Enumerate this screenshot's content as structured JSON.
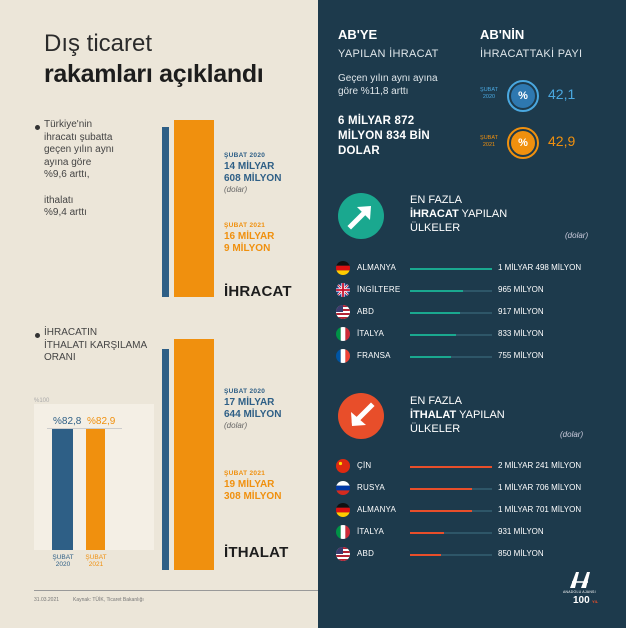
{
  "title": {
    "line1": "Dış ticaret",
    "line2": "rakamları açıklandı"
  },
  "export_intro": {
    "line1": "Türkiye'nin",
    "line2": "ihracatı şubatta",
    "line3": "geçen yılın aynı",
    "line4": "ayına göre",
    "line5": "%9,6 arttı,",
    "line6": "ithalatı",
    "line7": "%9,4 arttı"
  },
  "export_bars": {
    "left_value": 14.608,
    "right_value": 16.009,
    "y2020_label": "ŞUBAT 2020",
    "y2020_value_1": "14 MİLYAR",
    "y2020_value_2": "608 MİLYON",
    "y2020_unit": "(dolar)",
    "y2021_label": "ŞUBAT 2021",
    "y2021_value_1": "16 MİLYAR",
    "y2021_value_2": "9 MİLYON",
    "label": "İHRACAT"
  },
  "import_bars": {
    "left_value": 17.644,
    "right_value": 19.308,
    "y2020_label": "ŞUBAT 2020",
    "y2020_value_1": "17 MİLYAR",
    "y2020_value_2": "644 MİLYON",
    "y2020_unit": "(dolar)",
    "y2021_label": "ŞUBAT 2021",
    "y2021_value_1": "19 MİLYAR",
    "y2021_value_2": "308 MİLYON",
    "label": "İTHALAT"
  },
  "coverage": {
    "title1": "İHRACATIN",
    "title2": "İTHALATI KARŞILAMA",
    "title3": "ORANI",
    "axis_label": "%100",
    "v2020": 82.8,
    "v2020_label": "%82,8",
    "v2021": 82.9,
    "v2021_label": "%82,9",
    "x1a": "ŞUBAT",
    "x1b": "2020",
    "x2a": "ŞUBAT",
    "x2b": "2021"
  },
  "eu_export": {
    "head1": "AB'YE",
    "head2": "YAPILAN İHRACAT",
    "txt1": "Geçen yılın aynı ayına",
    "txt2": "göre %11,8 arttı",
    "big1": "6 MİLYAR 872",
    "big2": "MİLYON 834 BİN",
    "big3": "DOLAR"
  },
  "eu_share": {
    "head1": "AB'NİN",
    "head2": "İHRACATTAKİ PAYI",
    "r1_month": "ŞUBAT",
    "r1_year": "2020",
    "r1_symbol": "%",
    "r1_value": "42,1",
    "r2_month": "ŞUBAT",
    "r2_year": "2021",
    "r2_symbol": "%",
    "r2_value": "42,9"
  },
  "top_export": {
    "title1": "EN FAZLA",
    "title2_bold": "İHRACAT",
    "title2_rest": " YAPILAN",
    "title3": "ÜLKELER",
    "unit": "(dolar)",
    "rows": [
      {
        "country": "ALMANYA",
        "value": "1 MİLYAR 498 MİLYON",
        "amount": 1498
      },
      {
        "country": "İNGİLTERE",
        "value": "965 MİLYON",
        "amount": 965
      },
      {
        "country": "ABD",
        "value": "917 MİLYON",
        "amount": 917
      },
      {
        "country": "İTALYA",
        "value": "833 MİLYON",
        "amount": 833
      },
      {
        "country": "FRANSA",
        "value": "755 MİLYON",
        "amount": 755
      }
    ]
  },
  "top_import": {
    "title1": "EN FAZLA",
    "title2_bold": "İTHALAT",
    "title2_rest": " YAPILAN",
    "title3": "ÜLKELER",
    "unit": "(dolar)",
    "rows": [
      {
        "country": "ÇİN",
        "value": "2 MİLYAR 241 MİLYON",
        "amount": 2241
      },
      {
        "country": "RUSYA",
        "value": "1 MİLYAR 706 MİLYON",
        "amount": 1706
      },
      {
        "country": "ALMANYA",
        "value": "1 MİLYAR 701 MİLYON",
        "amount": 1701
      },
      {
        "country": "İTALYA",
        "value": "931 MİLYON",
        "amount": 931
      },
      {
        "country": "ABD",
        "value": "850 MİLYON",
        "amount": 850
      }
    ]
  },
  "footer": {
    "date": "31.03.2021",
    "source": "Kaynak: TÜİK, Ticaret Bakanlığı",
    "logo_text": "ANADOLU AJANSI",
    "logo_100": "100",
    "logo_years": "YIL"
  },
  "colors": {
    "blue": "#2e5f86",
    "orange": "#f0900e",
    "teal": "#1aa88f",
    "red": "#e84e2a",
    "navy": "#1d3a4c"
  }
}
